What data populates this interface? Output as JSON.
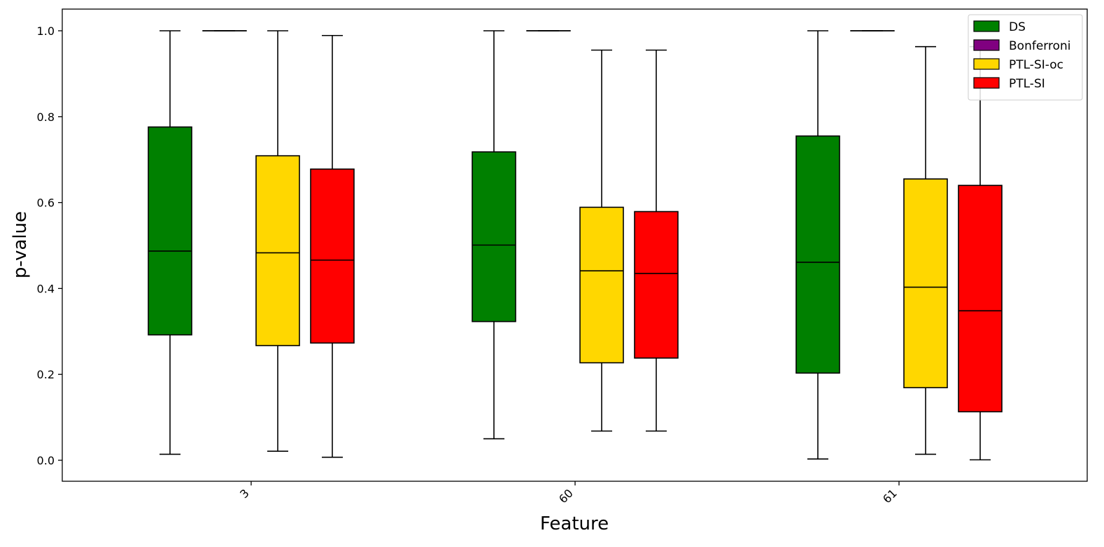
{
  "chart_data": {
    "type": "boxplot",
    "title": "",
    "xlabel": "Feature",
    "ylabel": "p-value",
    "ylim": [
      -0.05,
      1.05
    ],
    "yticks": [
      0.0,
      0.2,
      0.4,
      0.6,
      0.8,
      1.0
    ],
    "ytick_labels": [
      "0.0",
      "0.2",
      "0.4",
      "0.6",
      "0.8",
      "1.0"
    ],
    "categories": [
      "3",
      "60",
      "61"
    ],
    "xtick_rotation": -45,
    "grid": false,
    "legend_position": "top-right",
    "series": [
      {
        "name": "DS",
        "color": "#008000",
        "boxes": [
          {
            "whisker_low": 0.014,
            "q1": 0.292,
            "median": 0.487,
            "q3": 0.776,
            "whisker_high": 1.0
          },
          {
            "whisker_low": 0.05,
            "q1": 0.323,
            "median": 0.501,
            "q3": 0.718,
            "whisker_high": 1.0
          },
          {
            "whisker_low": 0.003,
            "q1": 0.203,
            "median": 0.461,
            "q3": 0.755,
            "whisker_high": 1.0
          }
        ]
      },
      {
        "name": "Bonferroni",
        "color": "#800080",
        "boxes": [
          {
            "whisker_low": 1.0,
            "q1": 1.0,
            "median": 1.0,
            "q3": 1.0,
            "whisker_high": 1.0
          },
          {
            "whisker_low": 1.0,
            "q1": 1.0,
            "median": 1.0,
            "q3": 1.0,
            "whisker_high": 1.0
          },
          {
            "whisker_low": 1.0,
            "q1": 1.0,
            "median": 1.0,
            "q3": 1.0,
            "whisker_high": 1.0
          }
        ]
      },
      {
        "name": "PTL-SI-oc",
        "color": "#FFD700",
        "boxes": [
          {
            "whisker_low": 0.021,
            "q1": 0.267,
            "median": 0.483,
            "q3": 0.709,
            "whisker_high": 1.0
          },
          {
            "whisker_low": 0.068,
            "q1": 0.227,
            "median": 0.441,
            "q3": 0.589,
            "whisker_high": 0.955
          },
          {
            "whisker_low": 0.014,
            "q1": 0.169,
            "median": 0.403,
            "q3": 0.655,
            "whisker_high": 0.963
          }
        ]
      },
      {
        "name": "PTL-SI",
        "color": "#FF0000",
        "boxes": [
          {
            "whisker_low": 0.007,
            "q1": 0.273,
            "median": 0.466,
            "q3": 0.678,
            "whisker_high": 0.989
          },
          {
            "whisker_low": 0.068,
            "q1": 0.238,
            "median": 0.435,
            "q3": 0.579,
            "whisker_high": 0.955
          },
          {
            "whisker_low": 0.001,
            "q1": 0.113,
            "median": 0.348,
            "q3": 0.64,
            "whisker_high": 0.963
          }
        ]
      }
    ]
  }
}
